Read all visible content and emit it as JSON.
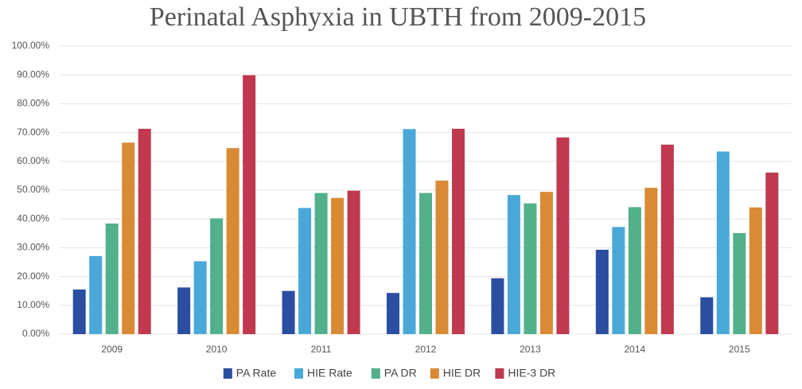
{
  "chart_data": {
    "type": "bar",
    "title": "Perinatal Asphyxia in UBTH from 2009-2015",
    "categories": [
      "2009",
      "2010",
      "2011",
      "2012",
      "2013",
      "2014",
      "2015"
    ],
    "series": [
      {
        "name": "PA Rate",
        "color": "#2a4ea0",
        "values": [
          15.5,
          16.2,
          15.0,
          14.3,
          19.4,
          29.3,
          12.8
        ]
      },
      {
        "name": "HIE Rate",
        "color": "#4aa8d8",
        "values": [
          27.1,
          25.3,
          43.8,
          71.2,
          48.3,
          37.2,
          63.4
        ]
      },
      {
        "name": "PA DR",
        "color": "#52b08a",
        "values": [
          38.4,
          40.2,
          49.0,
          49.0,
          45.4,
          44.1,
          35.1
        ]
      },
      {
        "name": "HIE DR",
        "color": "#d98a35",
        "values": [
          66.5,
          64.6,
          47.3,
          53.3,
          49.4,
          50.8,
          44.0
        ]
      },
      {
        "name": "HIE-3 DR",
        "color": "#c0394e",
        "values": [
          71.3,
          89.9,
          49.8,
          71.3,
          68.3,
          65.8,
          56.1
        ]
      }
    ],
    "ylim": [
      0,
      100
    ],
    "yticks": [
      {
        "value": 0,
        "label": "0.00%"
      },
      {
        "value": 10,
        "label": "10.00%"
      },
      {
        "value": 20,
        "label": "20.00%"
      },
      {
        "value": 30,
        "label": "30.00%"
      },
      {
        "value": 40,
        "label": "40.00%"
      },
      {
        "value": 50,
        "label": "50.00%"
      },
      {
        "value": 60,
        "label": "60.00%"
      },
      {
        "value": 70,
        "label": "70.00%"
      },
      {
        "value": 80,
        "label": "80.00%"
      },
      {
        "value": 90,
        "label": "90.00%"
      },
      {
        "value": 100,
        "label": "100.00%"
      }
    ],
    "grid": true,
    "legend": "bottom"
  }
}
